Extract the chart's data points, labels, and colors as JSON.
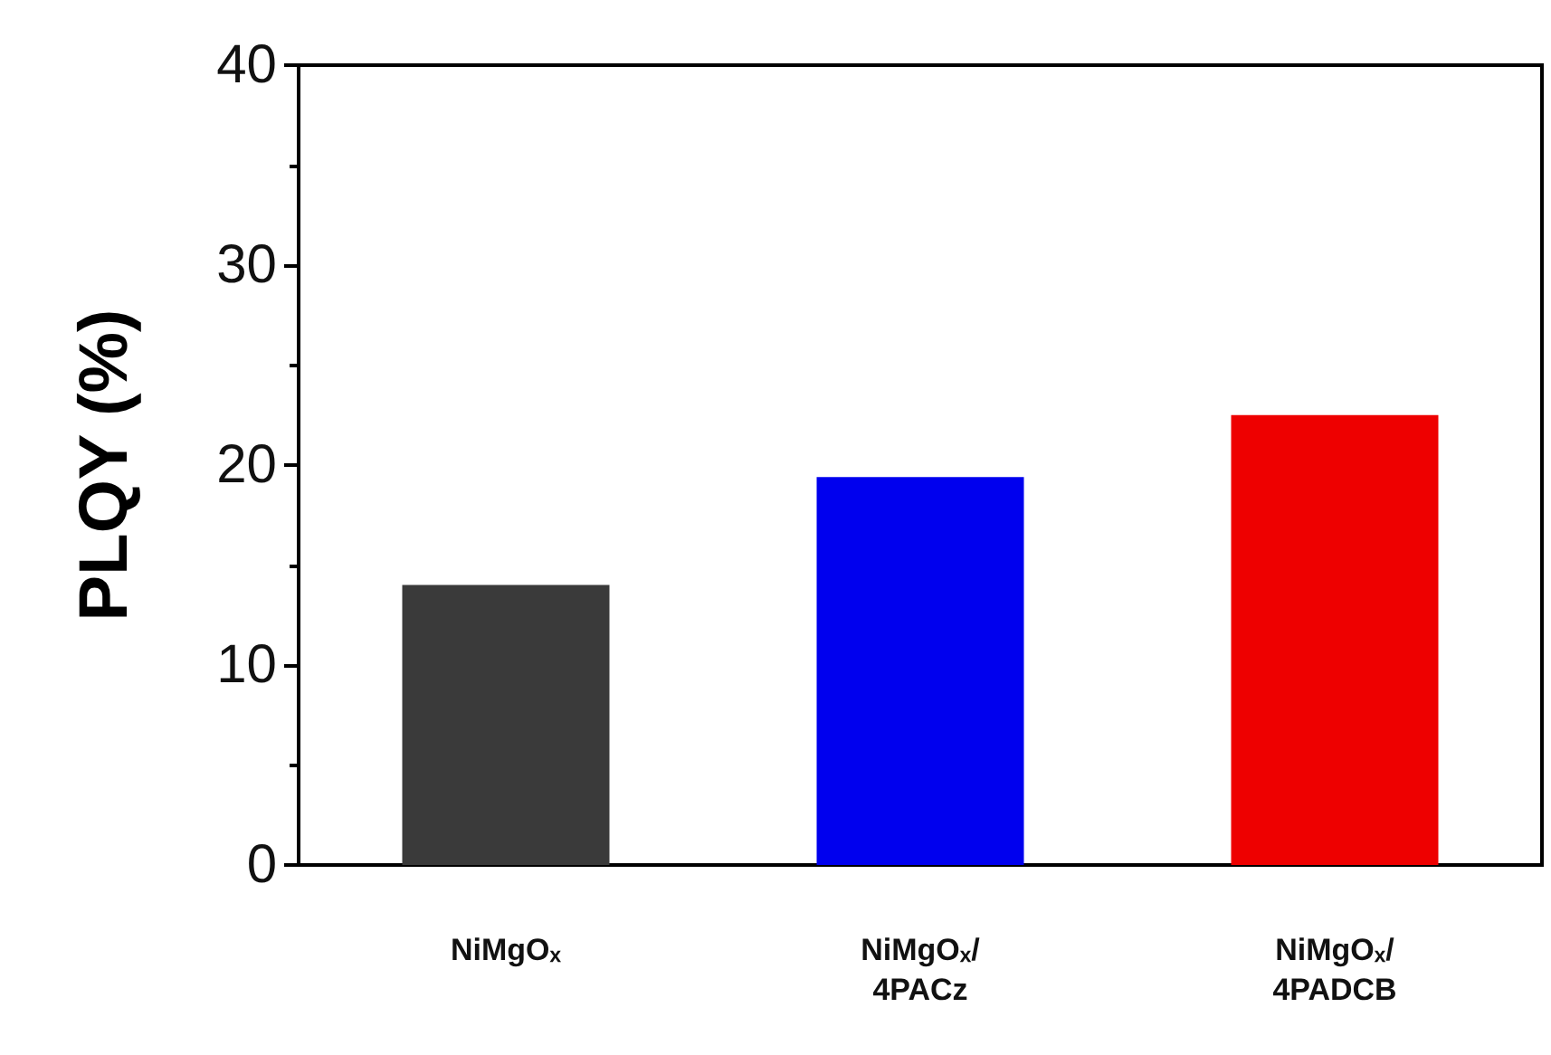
{
  "chart_data": {
    "type": "bar",
    "ylabel": "PLQY (%)",
    "categories": [
      "NiMgOₓ",
      "NiMgOₓ/\n4PACz",
      "NiMgOₓ/\n4PADCB"
    ],
    "values": [
      14.0,
      19.4,
      22.5
    ],
    "colors": [
      "#3a3a3a",
      "#0000ee",
      "#ee0000"
    ],
    "ylim": [
      0,
      40
    ],
    "yticks": [
      0,
      10,
      20,
      30,
      40
    ]
  }
}
